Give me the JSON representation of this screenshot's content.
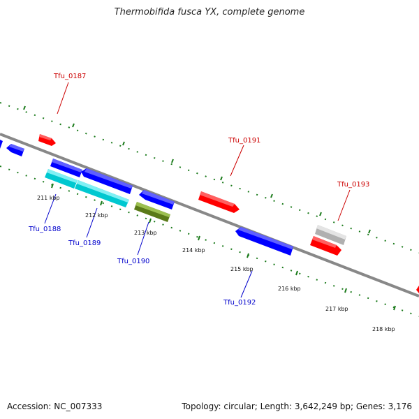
{
  "title": "Thermobifida fusca YX, complete genome",
  "footer": {
    "accession": "Accession: NC_007333",
    "stats": "Topology: circular; Length: 3,642,249 bp; Genes: 3,176"
  },
  "colors": {
    "forward_gene": "#ff0000",
    "reverse_gene": "#0000ff",
    "rna_gene": "#00c8d0",
    "pseudo_gene": "#6a8a20",
    "other_gene": "#c8c8c8",
    "ticks": "#1a7a1a",
    "backbone": "#888888"
  },
  "kbp_labels": [
    "211 kbp",
    "212 kbp",
    "213 kbp",
    "214 kbp",
    "215 kbp",
    "216 kbp",
    "217 kbp",
    "218 kbp"
  ],
  "gene_labels": {
    "above": [
      "Tfu_0187",
      "Tfu_0191",
      "Tfu_0193"
    ],
    "below": [
      "Tfu_0188",
      "Tfu_0189",
      "Tfu_0190",
      "Tfu_0192"
    ]
  }
}
